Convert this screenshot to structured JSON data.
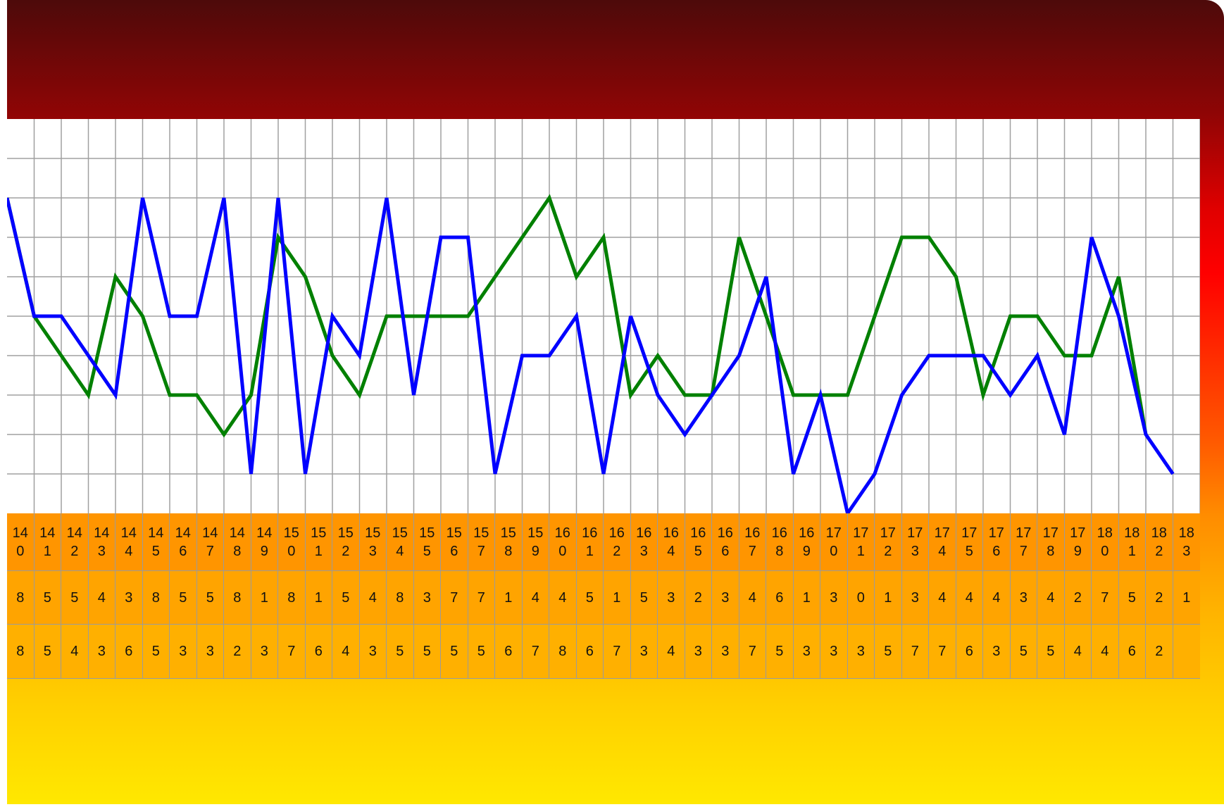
{
  "chart_data": {
    "type": "line",
    "x": [
      "140",
      "141",
      "142",
      "143",
      "144",
      "145",
      "146",
      "147",
      "148",
      "149",
      "150",
      "151",
      "152",
      "153",
      "154",
      "155",
      "156",
      "157",
      "158",
      "159",
      "160",
      "161",
      "162",
      "163",
      "164",
      "165",
      "166",
      "167",
      "168",
      "169",
      "170",
      "171",
      "172",
      "173",
      "174",
      "175",
      "176",
      "177",
      "178",
      "179",
      "180",
      "181",
      "182",
      "183"
    ],
    "ylim": [
      0,
      10
    ],
    "grid": true,
    "series": [
      {
        "color": "#0000ff",
        "values": [
          8,
          5,
          5,
          4,
          3,
          8,
          5,
          5,
          8,
          1,
          8,
          1,
          5,
          4,
          8,
          3,
          7,
          7,
          1,
          4,
          4,
          5,
          1,
          5,
          3,
          2,
          3,
          4,
          6,
          1,
          3,
          0,
          1,
          3,
          4,
          4,
          4,
          3,
          4,
          2,
          7,
          5,
          2,
          1
        ]
      },
      {
        "color": "#008000",
        "values": [
          8,
          5,
          4,
          3,
          6,
          5,
          3,
          3,
          2,
          3,
          7,
          6,
          4,
          3,
          5,
          5,
          5,
          5,
          6,
          7,
          8,
          6,
          7,
          3,
          4,
          3,
          3,
          7,
          5,
          3,
          3,
          3,
          5,
          7,
          7,
          6,
          3,
          5,
          5,
          4,
          4,
          6,
          2,
          null
        ]
      }
    ]
  },
  "table": {
    "header": [
      "140",
      "141",
      "142",
      "143",
      "144",
      "145",
      "146",
      "147",
      "148",
      "149",
      "150",
      "151",
      "152",
      "153",
      "154",
      "155",
      "156",
      "157",
      "158",
      "159",
      "160",
      "161",
      "162",
      "163",
      "164",
      "165",
      "166",
      "167",
      "168",
      "169",
      "170",
      "171",
      "172",
      "173",
      "174",
      "175",
      "176",
      "177",
      "178",
      "179",
      "180",
      "181",
      "182",
      "183"
    ],
    "row1": [
      "8",
      "5",
      "5",
      "4",
      "3",
      "8",
      "5",
      "5",
      "8",
      "1",
      "8",
      "1",
      "5",
      "4",
      "8",
      "3",
      "7",
      "7",
      "1",
      "4",
      "4",
      "5",
      "1",
      "5",
      "3",
      "2",
      "3",
      "4",
      "6",
      "1",
      "3",
      "0",
      "1",
      "3",
      "4",
      "4",
      "4",
      "3",
      "4",
      "2",
      "7",
      "5",
      "2",
      "1"
    ],
    "row2": [
      "8",
      "5",
      "4",
      "3",
      "6",
      "5",
      "3",
      "3",
      "2",
      "3",
      "7",
      "6",
      "4",
      "3",
      "5",
      "5",
      "5",
      "5",
      "6",
      "7",
      "8",
      "6",
      "7",
      "3",
      "4",
      "3",
      "3",
      "7",
      "5",
      "3",
      "3",
      "3",
      "5",
      "7",
      "7",
      "6",
      "3",
      "5",
      "5",
      "4",
      "4",
      "6",
      "2",
      ""
    ]
  }
}
